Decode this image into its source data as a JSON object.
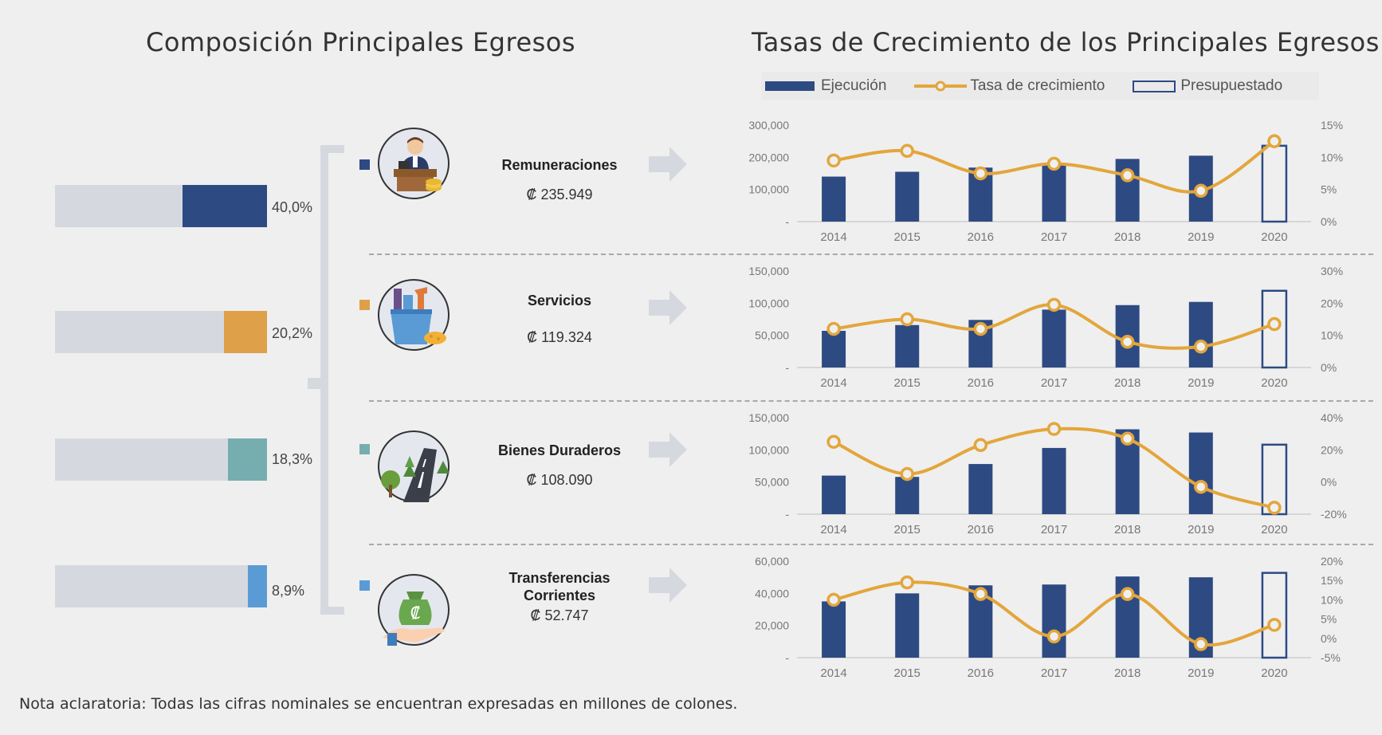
{
  "header": {
    "left_title": "Composición Principales Egresos",
    "right_title": "Tasas de Crecimiento de los Principales Egresos"
  },
  "legend": {
    "execution": "Ejecución",
    "growth_rate": "Tasa de crecimiento",
    "budgeted": "Presupuestado"
  },
  "colors": {
    "execution": "#2e4a82",
    "growth_line": "#e3a63c",
    "bar_background": "#d5d9df"
  },
  "composition": [
    {
      "pct_label": "40,0%",
      "share": 0.4,
      "color": "#2e4a82"
    },
    {
      "pct_label": "20,2%",
      "share": 0.202,
      "color": "#dfa04a"
    },
    {
      "pct_label": "18,3%",
      "share": 0.183,
      "color": "#76aeb0"
    },
    {
      "pct_label": "8,9%",
      "share": 0.089,
      "color": "#5b9bd5"
    }
  ],
  "categories": [
    {
      "name": "Remuneraciones",
      "value": "₡ 235.949",
      "icon": "office-worker-icon"
    },
    {
      "name": "Servicios",
      "value": "₡ 119.324",
      "icon": "cleaning-bucket-icon"
    },
    {
      "name": "Bienes Duraderos",
      "value": "₡ 108.090",
      "icon": "road-trees-icon"
    },
    {
      "name": "Transferencias Corrientes",
      "value": "₡ 52.747",
      "icon": "money-bag-hand-icon"
    }
  ],
  "chart_data": [
    {
      "type": "bar",
      "categories": [
        "2014",
        "2015",
        "2016",
        "2017",
        "2018",
        "2019",
        "2020"
      ],
      "series": [
        {
          "values": [
            140000,
            155000,
            168000,
            180000,
            195000,
            205000,
            235949
          ]
        },
        {
          "values": [
            9.5,
            11,
            7.5,
            9,
            7.2,
            4.8,
            12.5
          ]
        }
      ],
      "budget_category": "2020",
      "y_left": {
        "ticks": [
          0,
          100000,
          200000,
          300000
        ],
        "labels": [
          "-",
          "100,000",
          "200,000",
          "300,000"
        ]
      },
      "y_right": {
        "ticks": [
          0,
          5,
          10,
          15
        ],
        "labels": [
          "0%",
          "5%",
          "10%",
          "15%"
        ]
      }
    },
    {
      "type": "bar",
      "categories": [
        "2014",
        "2015",
        "2016",
        "2017",
        "2018",
        "2019",
        "2020"
      ],
      "series": [
        {
          "values": [
            57000,
            66000,
            74000,
            90000,
            97000,
            102000,
            119324
          ]
        },
        {
          "values": [
            12,
            15,
            12,
            19.5,
            8,
            6.5,
            13.5
          ]
        }
      ],
      "budget_category": "2020",
      "y_left": {
        "ticks": [
          0,
          50000,
          100000,
          150000
        ],
        "labels": [
          "-",
          "50,000",
          "100,000",
          "150,000"
        ]
      },
      "y_right": {
        "ticks": [
          0,
          10,
          20,
          30
        ],
        "labels": [
          "0%",
          "10%",
          "20%",
          "30%"
        ]
      }
    },
    {
      "type": "bar",
      "categories": [
        "2014",
        "2015",
        "2016",
        "2017",
        "2018",
        "2019",
        "2020"
      ],
      "series": [
        {
          "values": [
            60000,
            58000,
            78000,
            103000,
            132000,
            127000,
            108090
          ]
        },
        {
          "values": [
            25,
            5,
            23,
            33,
            27,
            -3,
            -16
          ]
        }
      ],
      "budget_category": "2020",
      "y_left": {
        "ticks": [
          0,
          50000,
          100000,
          150000
        ],
        "labels": [
          "-",
          "50,000",
          "100,000",
          "150,000"
        ]
      },
      "y_right": {
        "ticks": [
          -20,
          0,
          20,
          40
        ],
        "labels": [
          "-20%",
          "0%",
          "20%",
          "40%"
        ]
      }
    },
    {
      "type": "bar",
      "categories": [
        "2014",
        "2015",
        "2016",
        "2017",
        "2018",
        "2019",
        "2020"
      ],
      "series": [
        {
          "values": [
            35000,
            40000,
            45000,
            45500,
            50500,
            50000,
            52747
          ]
        },
        {
          "values": [
            10,
            14.5,
            11.5,
            0.5,
            11.5,
            -1.5,
            3.5
          ]
        }
      ],
      "budget_category": "2020",
      "y_left": {
        "ticks": [
          0,
          20000,
          40000,
          60000
        ],
        "labels": [
          "-",
          "20,000",
          "40,000",
          "60,000"
        ]
      },
      "y_right": {
        "ticks": [
          -5,
          0,
          5,
          10,
          15,
          20
        ],
        "labels": [
          "-5%",
          "0%",
          "5%",
          "10%",
          "15%",
          "20%"
        ]
      }
    }
  ],
  "footnote": "Nota aclaratoria: Todas las cifras nominales se encuentran expresadas en millones de colones."
}
